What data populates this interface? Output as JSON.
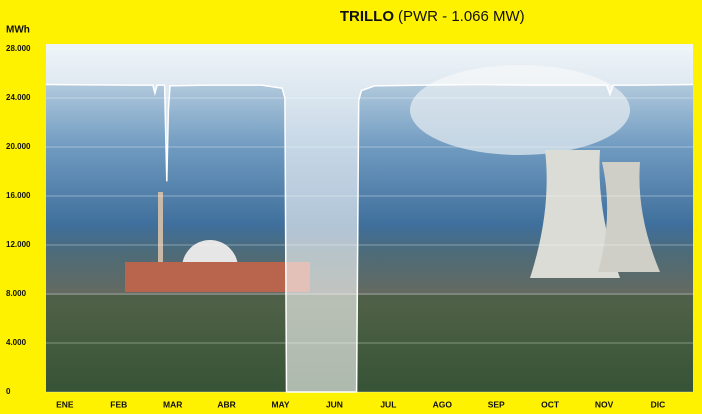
{
  "chart_data": {
    "type": "line",
    "title": "TRILLO",
    "subtitle": "(PWR - 1.066 MW)",
    "y_label": "MWh",
    "categories": [
      "ENE",
      "FEB",
      "MAR",
      "ABR",
      "MAY",
      "JUN",
      "JUL",
      "AGO",
      "SEP",
      "OCT",
      "NOV",
      "DIC"
    ],
    "x": [
      0,
      0.05,
      1.5,
      1.98,
      2.02,
      2.06,
      2.2,
      2.24,
      2.27,
      2.3,
      2.36,
      3.0,
      4.0,
      4.38,
      4.43,
      4.46,
      5.0,
      5.76,
      5.8,
      5.85,
      6.1,
      7.0,
      8.0,
      9.0,
      10.4,
      10.46,
      10.52,
      11.0,
      12.0
    ],
    "xlim": [
      0,
      12
    ],
    "series": [
      {
        "name": "MWh",
        "color": "#ffffff",
        "values": [
          25100,
          25100,
          25050,
          25050,
          24400,
          25050,
          25050,
          17200,
          23000,
          25000,
          25000,
          25050,
          25050,
          24800,
          24000,
          0,
          0,
          0,
          23800,
          24600,
          25000,
          25050,
          25100,
          25050,
          25050,
          24300,
          25050,
          25050,
          25100
        ]
      }
    ],
    "ylim": [
      0,
      28000
    ],
    "yticks": [
      0,
      {
        "value": 4000,
        "label": "4.000"
      },
      {
        "value": 8000,
        "label": "8.000"
      },
      {
        "value": 12000,
        "label": "12.000"
      },
      {
        "value": 16000,
        "label": "16.000"
      },
      {
        "value": 20000,
        "label": "20.000"
      },
      {
        "value": 24000,
        "label": "24.000"
      },
      {
        "value": 28000,
        "label": "28.000"
      }
    ],
    "grid": true
  }
}
